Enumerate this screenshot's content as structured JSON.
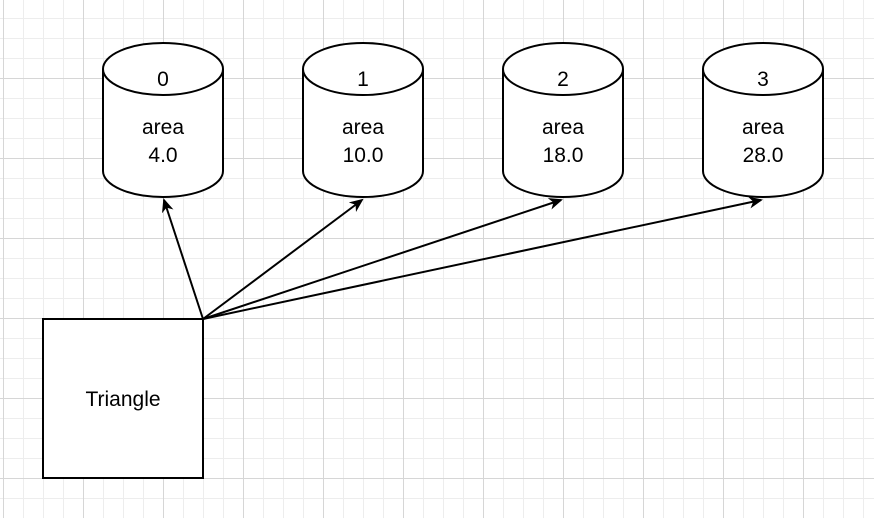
{
  "colors": {
    "stroke": "#000000",
    "shape_fill": "#ffffff",
    "grid_major": "#d6d6d6",
    "grid_minor": "#ededed"
  },
  "source": {
    "label": "Triangle"
  },
  "cylinders": [
    {
      "title": "0",
      "line1": "area",
      "line2": "4.0"
    },
    {
      "title": "1",
      "line1": "area",
      "line2": "10.0"
    },
    {
      "title": "2",
      "line1": "area",
      "line2": "18.0"
    },
    {
      "title": "3",
      "line1": "area",
      "line2": "28.0"
    }
  ]
}
